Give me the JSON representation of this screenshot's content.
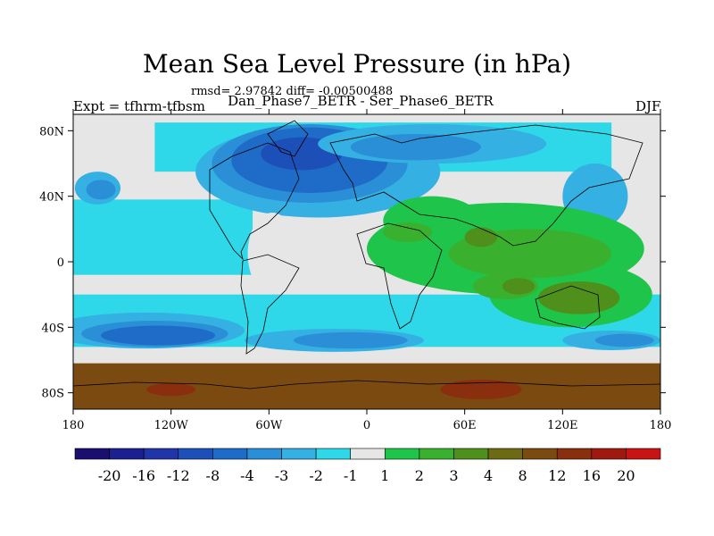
{
  "chart_data": {
    "type": "heatmap",
    "title": "Mean Sea Level Pressure (in hPa)",
    "stats_text": "rmsd= 2.97842 diff= -0.00500488",
    "left_label": "Expt = tfhrm-tfbsm",
    "center_label": "Dan_Phase7_BETR - Ser_Phase6_BETR",
    "right_label": "DJF",
    "xlim": [
      -180,
      180
    ],
    "ylim": [
      -90,
      90
    ],
    "x_ticks": [
      {
        "value": -180,
        "label": "180"
      },
      {
        "value": -120,
        "label": "120W"
      },
      {
        "value": -60,
        "label": "60W"
      },
      {
        "value": 0,
        "label": "0"
      },
      {
        "value": 60,
        "label": "60E"
      },
      {
        "value": 120,
        "label": "120E"
      },
      {
        "value": 180,
        "label": "180"
      }
    ],
    "y_ticks": [
      {
        "value": 80,
        "label": "80N"
      },
      {
        "value": 40,
        "label": "40N"
      },
      {
        "value": 0,
        "label": "0"
      },
      {
        "value": -40,
        "label": "40S"
      },
      {
        "value": -80,
        "label": "80S"
      }
    ],
    "colorbar": {
      "levels": [
        "-20",
        "-16",
        "-12",
        "-8",
        "-4",
        "-3",
        "-2",
        "-1",
        "1",
        "2",
        "3",
        "4",
        "8",
        "12",
        "16",
        "20"
      ],
      "colors": [
        "#1a0f6e",
        "#1b1f8f",
        "#1f35a8",
        "#1d4fb8",
        "#1f6cc8",
        "#2a8fd6",
        "#34b0e2",
        "#2fd8e8",
        "#e6e6e6",
        "#1fc44a",
        "#3ab12e",
        "#4f8f1c",
        "#6c6a12",
        "#7b4a10",
        "#8a2f0e",
        "#a0190f",
        "#c81414"
      ]
    },
    "regions": [
      {
        "category": "-1",
        "shape": "band",
        "lat_from": 38,
        "lat_to": -8,
        "lon_from": -180,
        "lon_to": -70
      },
      {
        "category": "-1",
        "shape": "band",
        "lat_from": -20,
        "lat_to": -52,
        "lon_from": -180,
        "lon_to": 180
      },
      {
        "category": "-1",
        "shape": "band",
        "lat_from": 85,
        "lat_to": 55,
        "lon_from": -130,
        "lon_to": 150
      },
      {
        "category": "-2",
        "shape": "ellipse",
        "lon": -135,
        "lat": -42,
        "rlon": 60,
        "rlat": 11
      },
      {
        "category": "-3",
        "shape": "ellipse",
        "lon": -130,
        "lat": -44,
        "rlon": 45,
        "rlat": 8
      },
      {
        "category": "-4",
        "shape": "ellipse",
        "lon": -128,
        "lat": -45,
        "rlon": 35,
        "rlat": 6
      },
      {
        "category": "-2",
        "shape": "ellipse",
        "lon": -20,
        "lat": -48,
        "rlon": 55,
        "rlat": 7
      },
      {
        "category": "-3",
        "shape": "ellipse",
        "lon": -10,
        "lat": -48,
        "rlon": 35,
        "rlat": 5
      },
      {
        "category": "-2",
        "shape": "ellipse",
        "lon": 150,
        "lat": -48,
        "rlon": 30,
        "rlat": 6
      },
      {
        "category": "-3",
        "shape": "ellipse",
        "lon": 158,
        "lat": -48,
        "rlon": 18,
        "rlat": 4
      },
      {
        "category": "-2",
        "shape": "ellipse",
        "lon": -165,
        "lat": 45,
        "rlon": 14,
        "rlat": 10
      },
      {
        "category": "-3",
        "shape": "ellipse",
        "lon": -163,
        "lat": 44,
        "rlon": 9,
        "rlat": 6
      },
      {
        "category": "-2",
        "shape": "ellipse",
        "lon": -30,
        "lat": 55,
        "rlon": 75,
        "rlat": 28
      },
      {
        "category": "-3",
        "shape": "ellipse",
        "lon": -35,
        "lat": 60,
        "rlon": 60,
        "rlat": 24
      },
      {
        "category": "-4",
        "shape": "ellipse",
        "lon": -35,
        "lat": 62,
        "rlon": 48,
        "rlat": 20
      },
      {
        "category": "-8",
        "shape": "ellipse",
        "lon": -40,
        "lat": 66,
        "rlon": 25,
        "rlat": 10
      },
      {
        "category": "-2",
        "shape": "ellipse",
        "lon": 40,
        "lat": 72,
        "rlon": 70,
        "rlat": 12
      },
      {
        "category": "-3",
        "shape": "ellipse",
        "lon": 30,
        "lat": 70,
        "rlon": 40,
        "rlat": 8
      },
      {
        "category": "-2",
        "shape": "ellipse",
        "lon": 140,
        "lat": 40,
        "rlon": 20,
        "rlat": 20
      },
      {
        "category": "1",
        "shape": "ellipse",
        "lon": -58,
        "lat": 5,
        "rlon": 15,
        "rlat": 25
      },
      {
        "category": "2",
        "shape": "ellipse",
        "lon": 85,
        "lat": 8,
        "rlon": 85,
        "rlat": 28
      },
      {
        "category": "2",
        "shape": "ellipse",
        "lon": 40,
        "lat": 25,
        "rlon": 30,
        "rlat": 15
      },
      {
        "category": "2",
        "shape": "ellipse",
        "lon": 125,
        "lat": -20,
        "rlon": 50,
        "rlat": 20
      },
      {
        "category": "3",
        "shape": "ellipse",
        "lon": 100,
        "lat": 5,
        "rlon": 50,
        "rlat": 15
      },
      {
        "category": "3",
        "shape": "ellipse",
        "lon": 25,
        "lat": 18,
        "rlon": 15,
        "rlat": 6
      },
      {
        "category": "3",
        "shape": "ellipse",
        "lon": 85,
        "lat": -15,
        "rlon": 20,
        "rlat": 8
      },
      {
        "category": "4",
        "shape": "ellipse",
        "lon": 130,
        "lat": -22,
        "rlon": 25,
        "rlat": 10
      },
      {
        "category": "4",
        "shape": "ellipse",
        "lon": 93,
        "lat": -15,
        "rlon": 10,
        "rlat": 5
      },
      {
        "category": "4",
        "shape": "ellipse",
        "lon": 70,
        "lat": 15,
        "rlon": 10,
        "rlat": 6
      },
      {
        "category": "12",
        "shape": "band",
        "lat_from": -62,
        "lat_to": -90,
        "lon_from": -180,
        "lon_to": 180
      },
      {
        "category": "16",
        "shape": "ellipse",
        "lon": 70,
        "lat": -78,
        "rlon": 25,
        "rlat": 6
      },
      {
        "category": "16",
        "shape": "ellipse",
        "lon": -120,
        "lat": -78,
        "rlon": 15,
        "rlat": 4
      }
    ]
  }
}
